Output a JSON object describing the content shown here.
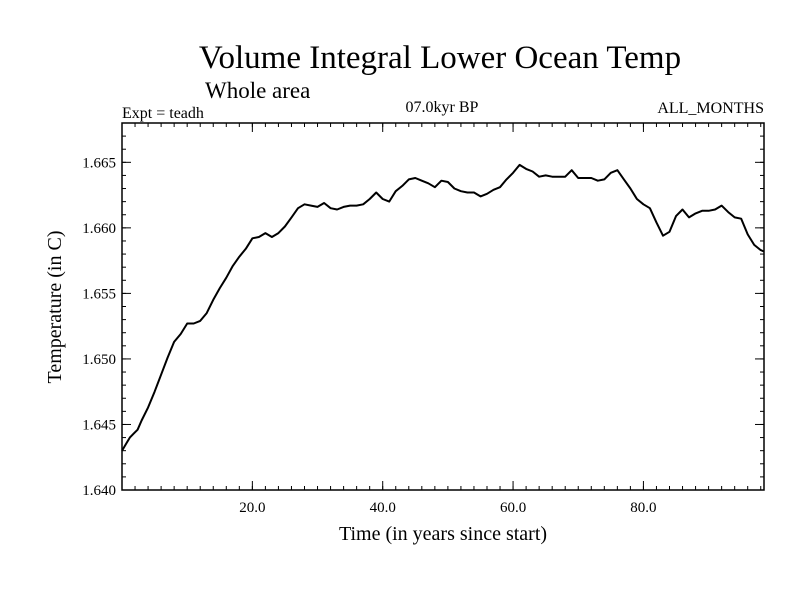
{
  "chart_data": {
    "type": "line",
    "title": "Volume Integral Lower Ocean Temp",
    "subtitle": "Whole area",
    "experiment": "Expt = teadh",
    "period": "07.0kyr BP",
    "months": "ALL_MONTHS",
    "xlabel": "Time (in years since start)",
    "ylabel": "Temperature (in C)",
    "xlim": [
      0,
      98.5
    ],
    "ylim": [
      1.64,
      1.668
    ],
    "x_ticks": [
      20,
      40,
      60,
      80
    ],
    "x_tick_labels": [
      "20.0",
      "40.0",
      "60.0",
      "80.0"
    ],
    "y_ticks": [
      1.64,
      1.645,
      1.65,
      1.655,
      1.66,
      1.665
    ],
    "y_tick_labels": [
      "1.640",
      "1.645",
      "1.650",
      "1.655",
      "1.660",
      "1.665"
    ],
    "series": [
      {
        "name": "Volume Integral Lower Ocean Temp",
        "color": "#000000",
        "x": [
          0.0,
          0.6,
          1.2,
          1.8,
          2.4,
          3.0,
          4.0,
          5.0,
          6.0,
          7.0,
          8.0,
          9.0,
          10.0,
          11.0,
          12.0,
          13.0,
          14.0,
          15.0,
          16.0,
          17.0,
          18.0,
          19.0,
          20.0,
          21.0,
          22.0,
          23.0,
          24.0,
          25.0,
          26.0,
          27.0,
          28.0,
          29.0,
          30.0,
          31.0,
          32.0,
          33.0,
          34.0,
          35.0,
          36.0,
          37.0,
          38.0,
          39.0,
          40.0,
          41.0,
          42.0,
          43.0,
          44.0,
          45.0,
          46.0,
          47.0,
          48.0,
          49.0,
          50.0,
          51.0,
          52.0,
          53.0,
          54.0,
          55.0,
          56.0,
          57.0,
          58.0,
          59.0,
          60.0,
          61.0,
          62.0,
          63.0,
          64.0,
          65.0,
          66.0,
          67.0,
          68.0,
          69.0,
          70.0,
          71.0,
          72.0,
          73.0,
          74.0,
          75.0,
          76.0,
          77.0,
          78.0,
          79.0,
          80.0,
          81.0,
          82.0,
          83.0,
          84.0,
          85.0,
          86.0,
          87.0,
          88.0,
          89.0,
          90.0,
          91.0,
          92.0,
          93.0,
          94.0,
          95.0,
          96.0,
          97.0,
          98.0,
          98.5
        ],
        "values": [
          1.643,
          1.6435,
          1.644,
          1.6443,
          1.6446,
          1.6453,
          1.6463,
          1.6475,
          1.6488,
          1.6501,
          1.6513,
          1.6519,
          1.6527,
          1.6527,
          1.6529,
          1.6535,
          1.6545,
          1.6554,
          1.6562,
          1.6571,
          1.6578,
          1.6584,
          1.6592,
          1.6593,
          1.6596,
          1.6593,
          1.6596,
          1.6601,
          1.6608,
          1.6615,
          1.6618,
          1.6617,
          1.6616,
          1.6619,
          1.6615,
          1.6614,
          1.6616,
          1.6617,
          1.6617,
          1.6618,
          1.6622,
          1.6627,
          1.6622,
          1.662,
          1.6628,
          1.6632,
          1.6637,
          1.6638,
          1.6636,
          1.6634,
          1.6631,
          1.6636,
          1.6635,
          1.663,
          1.6628,
          1.6627,
          1.6627,
          1.6624,
          1.6626,
          1.6629,
          1.6631,
          1.6637,
          1.6642,
          1.6648,
          1.6645,
          1.6643,
          1.6639,
          1.664,
          1.6639,
          1.6639,
          1.6639,
          1.6644,
          1.6638,
          1.6638,
          1.6638,
          1.6636,
          1.6637,
          1.6642,
          1.6644,
          1.6637,
          1.663,
          1.6622,
          1.6618,
          1.6615,
          1.6604,
          1.6594,
          1.6597,
          1.6609,
          1.6614,
          1.6608,
          1.6611,
          1.6613,
          1.6613,
          1.6614,
          1.6617,
          1.6612,
          1.6608,
          1.6607,
          1.6595,
          1.6587,
          1.6583,
          1.6582
        ]
      }
    ]
  }
}
